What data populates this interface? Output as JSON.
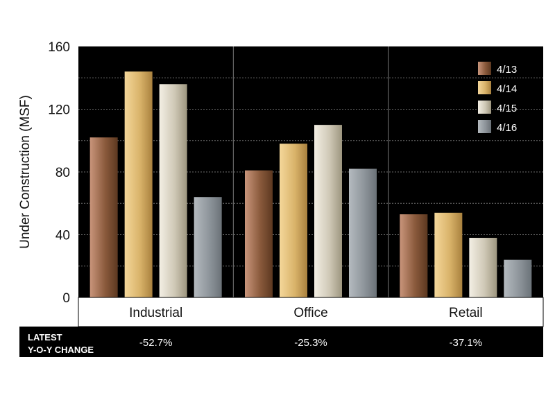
{
  "chart_data": {
    "type": "bar",
    "ylabel": "Under Construction (MSF)",
    "ylim": [
      0,
      160
    ],
    "yticks": [
      0,
      40,
      80,
      120,
      160
    ],
    "categories": [
      "Industrial",
      "Office",
      "Retail"
    ],
    "series": [
      {
        "name": "4/13",
        "values": [
          102,
          81,
          53
        ]
      },
      {
        "name": "4/14",
        "values": [
          144,
          98,
          54
        ]
      },
      {
        "name": "4/15",
        "values": [
          136,
          110,
          38
        ]
      },
      {
        "name": "4/16",
        "values": [
          64,
          82,
          24
        ]
      }
    ],
    "legend_position": "top-right",
    "grid": "horizontal dotted",
    "footer": {
      "label_line1": "LATEST",
      "label_line2": "Y-O-Y CHANGE",
      "values": [
        "-52.7%",
        "-25.3%",
        "-37.1%"
      ]
    }
  },
  "colors": {
    "background": "#000000",
    "series": [
      "#8a5a3c",
      "#d9b36a",
      "#cfc8b6",
      "#8e959b"
    ]
  }
}
